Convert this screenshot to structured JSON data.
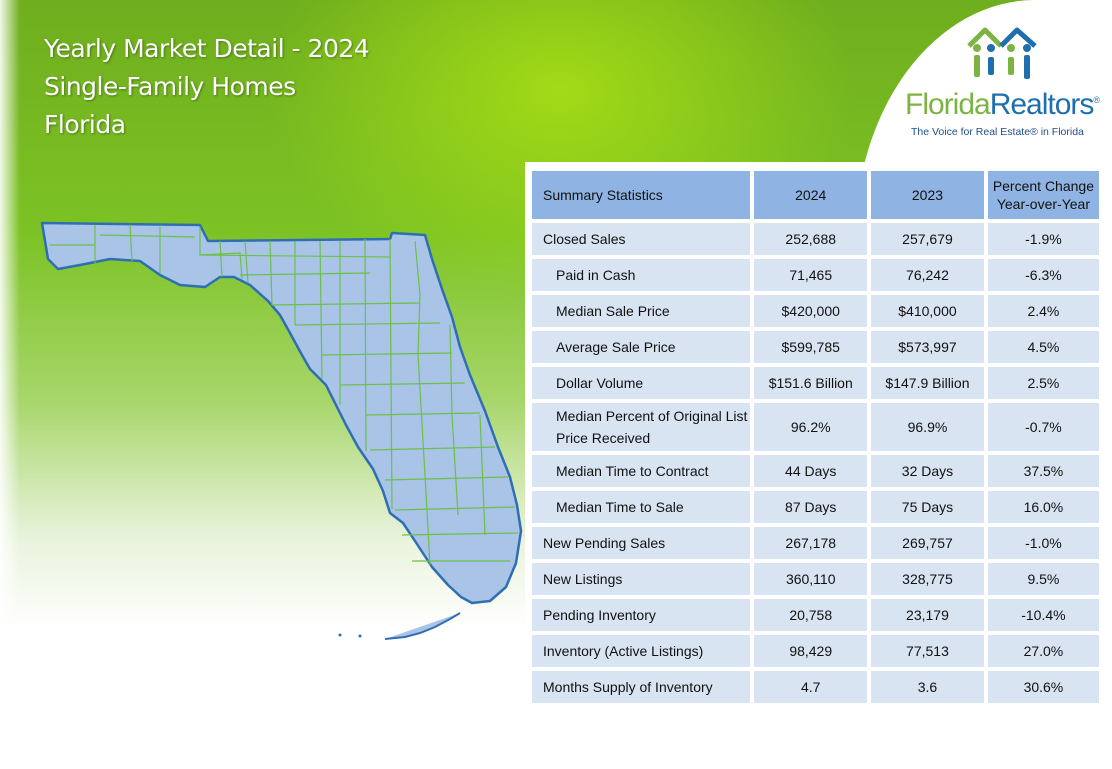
{
  "header": {
    "title_line1": "Yearly Market Detail - 2024",
    "title_line2": "Single-Family Homes",
    "title_line3": "Florida"
  },
  "logo": {
    "name_part1": "Florida",
    "name_part2": "Realtors",
    "reg_mark": "®",
    "tagline": "The Voice for Real Estate® in Florida"
  },
  "table": {
    "headers": [
      "Summary Statistics",
      "2024",
      "2023",
      "Percent Change Year-over-Year"
    ],
    "rows": [
      {
        "label": "Closed Sales",
        "v2024": "252,688",
        "v2023": "257,679",
        "change": "-1.9%"
      },
      {
        "label": "Paid in Cash",
        "v2024": "71,465",
        "v2023": "76,242",
        "change": "-6.3%"
      },
      {
        "label": "Median Sale Price",
        "v2024": "$420,000",
        "v2023": "$410,000",
        "change": "2.4%"
      },
      {
        "label": "Average Sale Price",
        "v2024": "$599,785",
        "v2023": "$573,997",
        "change": "4.5%"
      },
      {
        "label": "Dollar Volume",
        "v2024": "$151.6 Billion",
        "v2023": "$147.9 Billion",
        "change": "2.5%"
      },
      {
        "label": "Median Percent of Original List Price Received",
        "v2024": "96.2%",
        "v2023": "96.9%",
        "change": "-0.7%"
      },
      {
        "label": "Median Time to Contract",
        "v2024": "44 Days",
        "v2023": "32 Days",
        "change": "37.5%"
      },
      {
        "label": "Median Time to Sale",
        "v2024": "87 Days",
        "v2023": "75 Days",
        "change": "16.0%"
      },
      {
        "label": "New Pending Sales",
        "v2024": "267,178",
        "v2023": "269,757",
        "change": "-1.0%"
      },
      {
        "label": "New Listings",
        "v2024": "360,110",
        "v2023": "328,775",
        "change": "9.5%"
      },
      {
        "label": "Pending Inventory",
        "v2024": "20,758",
        "v2023": "23,179",
        "change": "-10.4%"
      },
      {
        "label": "Inventory (Active Listings)",
        "v2024": "98,429",
        "v2023": "77,513",
        "change": "27.0%"
      },
      {
        "label": "Months Supply of Inventory",
        "v2024": "4.7",
        "v2023": "3.6",
        "change": "30.6%"
      }
    ]
  },
  "colors": {
    "header_cell": "#8fb4e3",
    "body_cell": "#d9e4f2",
    "map_fill": "#a9c4e6",
    "map_border": "#2e6fb4",
    "county_lines": "#6cc04a",
    "logo_green": "#7cb342",
    "logo_blue": "#1f6fae"
  }
}
